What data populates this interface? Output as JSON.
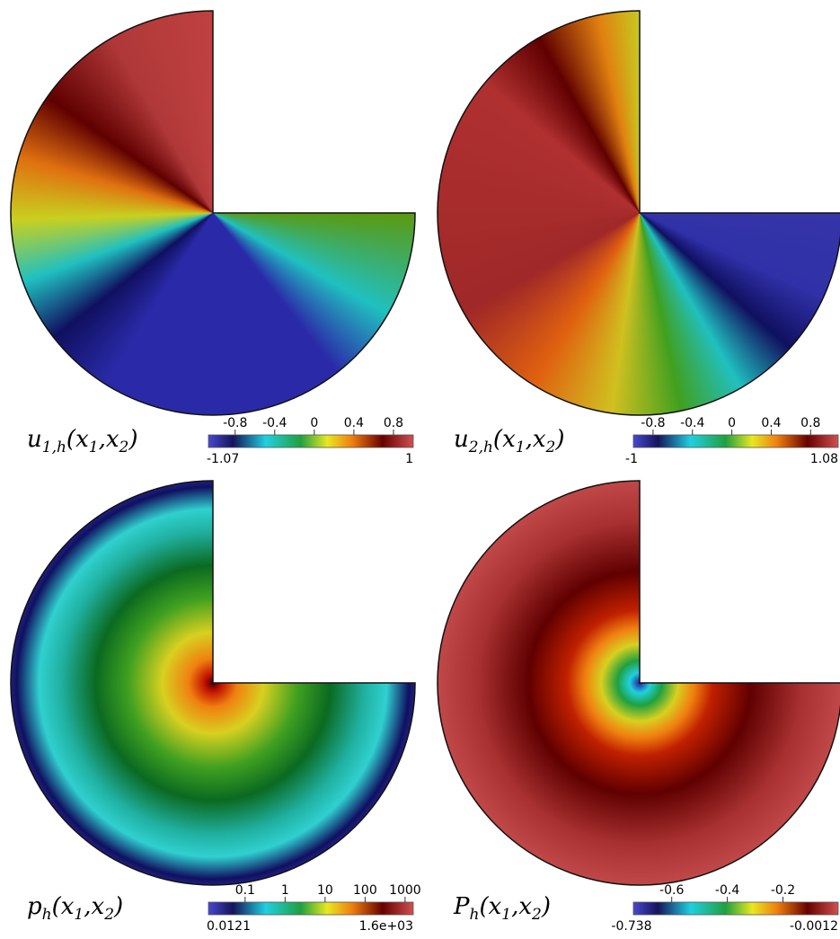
{
  "panels": [
    {
      "label": [
        "u",
        "1,h",
        "(x",
        "1",
        ",x",
        "2",
        ")"
      ],
      "colorbar": {
        "scale": "linear",
        "range": [
          -1.07,
          1
        ],
        "ticks": [
          -0.8,
          -0.4,
          0,
          0.4,
          0.8
        ]
      }
    },
    {
      "label": [
        "u",
        "2,h",
        "(x",
        "1",
        ",x",
        "2",
        ")"
      ],
      "colorbar": {
        "scale": "linear",
        "range": [
          -1,
          1.08
        ],
        "ticks": [
          -0.8,
          -0.4,
          0,
          0.4,
          0.8
        ]
      }
    },
    {
      "label": [
        "p",
        "h",
        "(x",
        "1",
        ",x",
        "2",
        ")"
      ],
      "colorbar": {
        "scale": "log",
        "range": [
          0.0121,
          {
            "value": 1600,
            "label": "1.6e+03"
          }
        ],
        "ticks": [
          0.1,
          1,
          10,
          100,
          1000
        ]
      }
    },
    {
      "label": [
        "P",
        "h",
        "(x",
        "1",
        ",x",
        "2",
        ")"
      ],
      "colorbar": {
        "scale": "linear",
        "range": [
          -0.738,
          -0.0012
        ],
        "ticks": [
          -0.6,
          -0.4,
          -0.2
        ]
      }
    }
  ]
}
